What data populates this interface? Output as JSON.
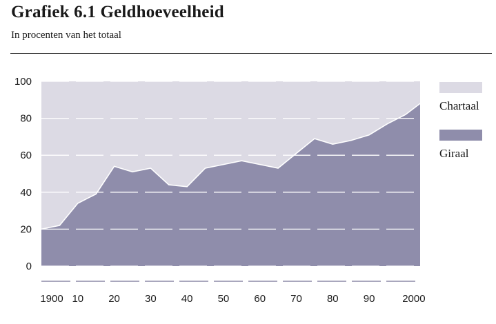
{
  "header": {
    "title": "Grafiek 6.1  Geldhoeveelheid",
    "subtitle": "In procenten van het totaal"
  },
  "chart_data": {
    "type": "area",
    "title": "Grafiek 6.1  Geldhoeveelheid",
    "subtitle": "In procenten van het totaal",
    "xlabel": "",
    "ylabel": "",
    "x": [
      1900,
      1905,
      1910,
      1915,
      1920,
      1925,
      1930,
      1935,
      1940,
      1945,
      1950,
      1955,
      1960,
      1965,
      1970,
      1975,
      1980,
      1985,
      1990,
      1995,
      2000,
      2004
    ],
    "series": [
      {
        "name": "Giraal",
        "color": "#8f8dab",
        "values": [
          20,
          22,
          34,
          39,
          54,
          51,
          53,
          44,
          43,
          53,
          55,
          57,
          55,
          53,
          61,
          69,
          66,
          68,
          71,
          77,
          82,
          88
        ]
      },
      {
        "name": "Chartaal",
        "color": "#dcdae4",
        "values": [
          80,
          78,
          66,
          61,
          46,
          49,
          47,
          56,
          57,
          47,
          45,
          43,
          45,
          47,
          39,
          31,
          34,
          32,
          29,
          23,
          18,
          12
        ]
      }
    ],
    "stacked_to": 100,
    "ylim": [
      0,
      100
    ],
    "xlim": [
      1900,
      2004
    ],
    "yticks": [
      "0",
      "20",
      "40",
      "60",
      "80",
      "100"
    ],
    "xtick_labels": [
      "1900",
      "10",
      "20",
      "30",
      "40",
      "50",
      "60",
      "70",
      "80",
      "90",
      "2000"
    ],
    "grid": "dashed horizontal white lines",
    "legend_position": "right",
    "legend": [
      "Chartaal",
      "Giraal"
    ]
  }
}
